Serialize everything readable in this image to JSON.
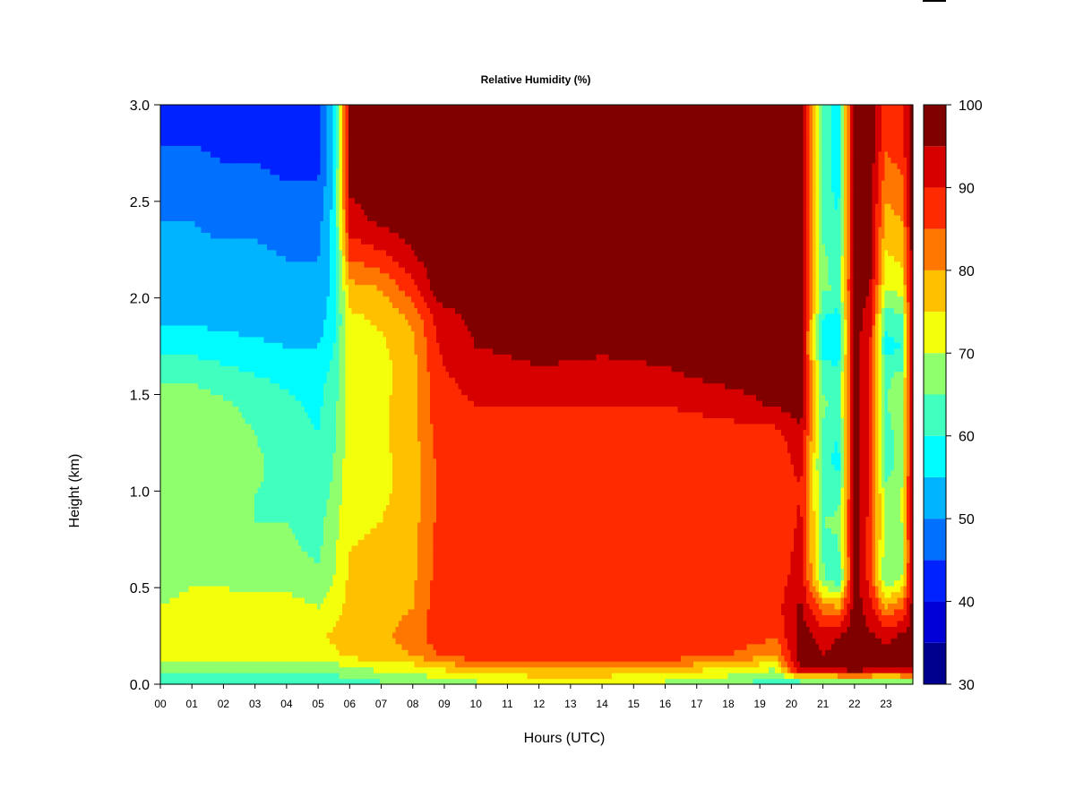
{
  "chart_data": {
    "type": "heatmap",
    "title": "Relative Humidity (%)",
    "xlabel": "Hours (UTC)",
    "ylabel": "Height (km)",
    "xlim": [
      0,
      23.85
    ],
    "ylim": [
      0,
      3.0
    ],
    "x_ticks": [
      "00",
      "01",
      "02",
      "03",
      "04",
      "05",
      "06",
      "07",
      "08",
      "09",
      "10",
      "11",
      "12",
      "13",
      "14",
      "15",
      "16",
      "17",
      "18",
      "19",
      "20",
      "21",
      "22",
      "23"
    ],
    "y_ticks": [
      "0.0",
      "0.5",
      "1.0",
      "1.5",
      "2.0",
      "2.5",
      "3.0"
    ],
    "colorbar": {
      "label": "",
      "range": [
        30,
        100
      ],
      "levels": [
        30,
        35,
        40,
        45,
        50,
        55,
        60,
        65,
        70,
        75,
        80,
        85,
        90,
        95,
        100
      ],
      "tick_labels": [
        "30",
        "40",
        "50",
        "60",
        "70",
        "80",
        "90",
        "100"
      ],
      "colors": [
        "#00008f",
        "#0000d6",
        "#0022ff",
        "#0070ff",
        "#00b4ff",
        "#00fcff",
        "#40ffbf",
        "#90ff6d",
        "#f4ff0c",
        "#ffc000",
        "#ff7700",
        "#ff2a00",
        "#d60000",
        "#800000"
      ]
    },
    "grid": false,
    "height_km": [
      0.02,
      0.08,
      0.15,
      0.25,
      0.4,
      0.55,
      0.7,
      0.85,
      1.0,
      1.15,
      1.3,
      1.45,
      1.6,
      1.75,
      1.9,
      2.05,
      2.2,
      2.4,
      2.6,
      2.8,
      3.0
    ],
    "time_h": [
      0.0,
      1.0,
      2.0,
      3.0,
      4.0,
      5.0,
      5.5,
      6.0,
      7.0,
      8.0,
      8.8,
      10.0,
      12.0,
      14.0,
      16.0,
      18.0,
      19.5,
      20.3,
      21.0,
      21.5,
      22.0,
      22.5,
      23.0,
      23.5,
      23.85
    ],
    "rh_percent": [
      [
        62,
        63,
        63,
        63,
        62,
        62,
        63,
        64,
        65,
        66,
        68,
        70,
        72,
        72,
        70,
        67,
        63,
        65,
        66,
        68,
        68,
        68,
        67,
        68,
        70
      ],
      [
        66,
        66,
        66,
        66,
        66,
        66,
        67,
        69,
        71,
        72,
        75,
        78,
        80,
        80,
        78,
        74,
        70,
        97,
        95,
        97,
        98,
        97,
        96,
        97,
        97
      ],
      [
        72,
        72,
        72,
        72,
        72,
        72,
        74,
        76,
        78,
        80,
        85,
        88,
        88,
        90,
        88,
        85,
        80,
        97,
        95,
        96,
        98,
        97,
        96,
        97,
        97
      ],
      [
        72,
        74,
        75,
        74,
        74,
        74,
        76,
        78,
        79,
        82,
        88,
        90,
        90,
        90,
        90,
        88,
        86,
        97,
        94,
        95,
        98,
        96,
        94,
        96,
        97
      ],
      [
        70,
        72,
        72,
        72,
        72,
        70,
        72,
        77,
        78,
        80,
        88,
        89,
        88,
        87,
        89,
        89,
        88,
        96,
        82,
        80,
        98,
        92,
        80,
        85,
        97
      ],
      [
        68,
        69,
        69,
        68,
        68,
        66,
        70,
        76,
        77,
        79,
        87,
        88,
        86,
        85,
        88,
        88,
        87,
        93,
        66,
        60,
        98,
        88,
        65,
        70,
        97
      ],
      [
        67,
        68,
        67,
        66,
        66,
        64,
        69,
        75,
        76,
        78,
        87,
        87,
        85,
        85,
        88,
        87,
        86,
        92,
        64,
        64,
        98,
        88,
        66,
        68,
        97
      ],
      [
        66,
        67,
        66,
        65,
        65,
        63,
        68,
        74,
        75,
        78,
        86,
        86,
        85,
        85,
        87,
        86,
        85,
        91,
        65,
        66,
        98,
        88,
        68,
        70,
        97
      ],
      [
        68,
        69,
        67,
        65,
        64,
        62,
        66,
        74,
        74,
        77,
        86,
        86,
        85,
        85,
        86,
        86,
        85,
        90,
        64,
        62,
        98,
        89,
        66,
        70,
        97
      ],
      [
        69,
        70,
        68,
        66,
        63,
        61,
        65,
        73,
        74,
        77,
        86,
        87,
        86,
        86,
        87,
        86,
        86,
        92,
        62,
        58,
        98,
        89,
        62,
        68,
        97
      ],
      [
        69,
        70,
        68,
        65,
        62,
        60,
        64,
        73,
        74,
        78,
        87,
        88,
        88,
        88,
        88,
        88,
        88,
        95,
        64,
        60,
        98,
        89,
        63,
        67,
        97
      ],
      [
        67,
        68,
        66,
        63,
        61,
        59,
        63,
        72,
        74,
        78,
        88,
        90,
        90,
        90,
        90,
        92,
        96,
        97,
        66,
        63,
        98,
        89,
        65,
        68,
        97
      ],
      [
        64,
        64,
        62,
        60,
        59,
        58,
        62,
        72,
        73,
        78,
        89,
        92,
        94,
        93,
        94,
        97,
        98,
        97,
        63,
        62,
        98,
        90,
        64,
        66,
        97
      ],
      [
        58,
        58,
        57,
        56,
        55,
        55,
        60,
        73,
        74,
        79,
        90,
        95,
        97,
        96,
        97,
        98,
        98,
        97,
        58,
        56,
        98,
        90,
        58,
        60,
        97
      ],
      [
        54,
        54,
        53,
        53,
        52,
        52,
        58,
        74,
        76,
        81,
        92,
        97,
        98,
        98,
        98,
        98,
        98,
        97,
        60,
        58,
        98,
        92,
        62,
        64,
        98
      ],
      [
        52,
        52,
        52,
        52,
        51,
        51,
        57,
        78,
        80,
        88,
        98,
        98,
        98,
        98,
        98,
        98,
        98,
        98,
        66,
        64,
        98,
        95,
        70,
        72,
        98
      ],
      [
        51,
        51,
        51,
        51,
        50,
        50,
        57,
        85,
        88,
        94,
        98,
        98,
        98,
        98,
        98,
        98,
        98,
        98,
        66,
        62,
        98,
        96,
        74,
        76,
        98
      ],
      [
        50,
        50,
        49,
        49,
        48,
        48,
        57,
        93,
        96,
        98,
        98,
        98,
        98,
        98,
        98,
        98,
        98,
        98,
        64,
        60,
        98,
        97,
        78,
        80,
        98
      ],
      [
        47,
        47,
        46,
        46,
        45,
        45,
        56,
        96,
        98,
        98,
        98,
        98,
        98,
        98,
        98,
        98,
        98,
        98,
        62,
        58,
        98,
        98,
        82,
        84,
        98
      ],
      [
        45,
        45,
        44,
        44,
        43,
        43,
        55,
        97,
        98,
        98,
        98,
        98,
        98,
        98,
        98,
        98,
        98,
        98,
        62,
        58,
        98,
        98,
        86,
        88,
        98
      ],
      [
        44,
        44,
        43,
        43,
        42,
        42,
        55,
        97,
        98,
        98,
        98,
        98,
        98,
        98,
        98,
        98,
        98,
        98,
        63,
        58,
        98,
        98,
        88,
        90,
        98
      ]
    ]
  }
}
